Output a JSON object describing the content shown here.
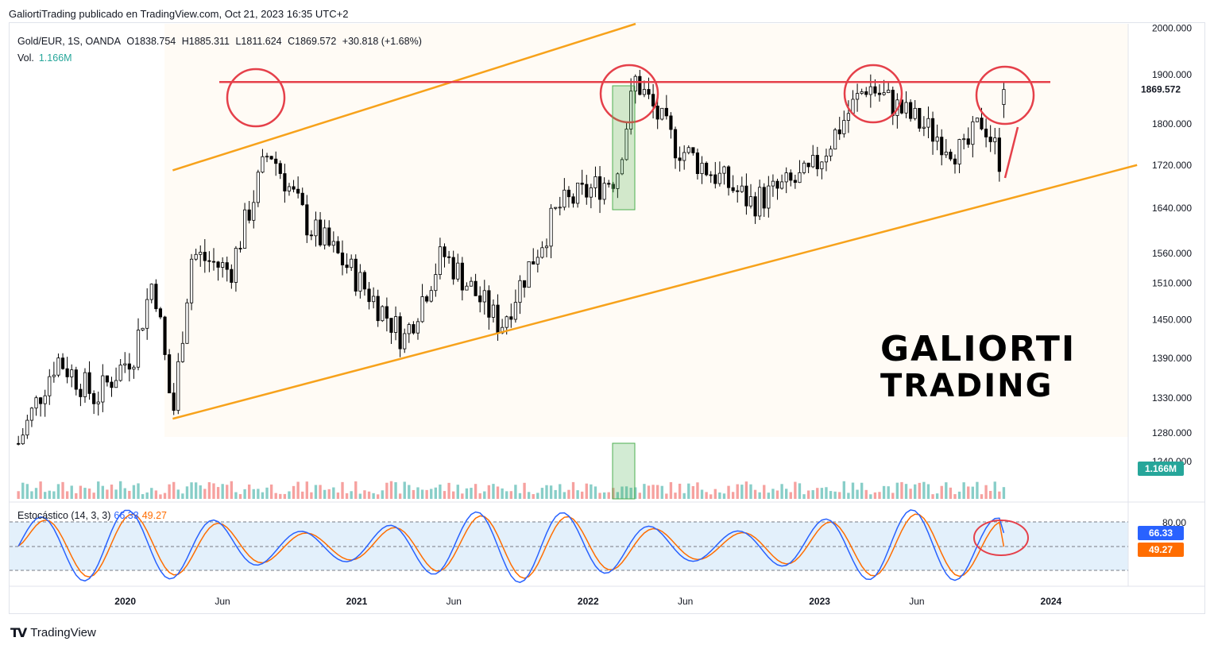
{
  "header": {
    "publisher_line": "GaliortiTrading publicado en TradingView.com, Oct 21, 2023 16:35 UTC+2"
  },
  "legend": {
    "symbol": "Gold/EUR, 1S, OANDA",
    "open": "O1838.754",
    "high": "H1885.311",
    "low": "L1811.624",
    "close": "C1869.572",
    "change": "+30.818 (+1.68%)",
    "vol_label": "Vol.",
    "vol_value": "1.166M"
  },
  "stoch_legend": {
    "label": "Estocástico (14, 3, 3)",
    "k_value": "66.33",
    "d_value": "49.27"
  },
  "price_axis": {
    "ticks": [
      "2000.000",
      "1900.000",
      "1800.000",
      "1720.000",
      "1640.000",
      "1560.000",
      "1510.000",
      "1450.000",
      "1390.000",
      "1330.000",
      "1280.000",
      "1240.000"
    ],
    "last_price": "1869.572",
    "volume_tag": "1.166M"
  },
  "stoch_axis": {
    "ticks": [
      "80.00"
    ],
    "k_tag": "66.33",
    "d_tag": "49.27"
  },
  "time_axis": {
    "labels": [
      "2020",
      "Jun",
      "2021",
      "Jun",
      "2022",
      "Jun",
      "2023",
      "Jun",
      "2024"
    ]
  },
  "watermark": {
    "line1": "GALIORTI",
    "line2": "TRADING"
  },
  "footer": {
    "brand": "TradingView"
  },
  "colors": {
    "bull_volume": "#26a69a",
    "bear_volume": "#ef5350",
    "channel": "#f7a21b",
    "resistance": "#e5404a",
    "stoch_k": "#2962ff",
    "stoch_d": "#ff6d00"
  },
  "chart_data": {
    "type": "candlestick",
    "symbol": "Gold/EUR",
    "interval": "1S",
    "y_scale": "log",
    "ylim": [
      1190,
      2010
    ],
    "x_range": [
      "2019-07",
      "2024-05"
    ],
    "price_key_points": [
      {
        "date": "2019-07",
        "price": 1265
      },
      {
        "date": "2019-09",
        "price": 1390
      },
      {
        "date": "2019-11",
        "price": 1330
      },
      {
        "date": "2020-01",
        "price": 1400
      },
      {
        "date": "2020-02",
        "price": 1520
      },
      {
        "date": "2020-03",
        "price": 1300
      },
      {
        "date": "2020-04",
        "price": 1560
      },
      {
        "date": "2020-06",
        "price": 1530
      },
      {
        "date": "2020-08",
        "price": 1750
      },
      {
        "date": "2020-10",
        "price": 1610
      },
      {
        "date": "2020-12",
        "price": 1540
      },
      {
        "date": "2021-03",
        "price": 1420
      },
      {
        "date": "2021-05",
        "price": 1560
      },
      {
        "date": "2021-08",
        "price": 1440
      },
      {
        "date": "2021-11",
        "price": 1640
      },
      {
        "date": "2022-02",
        "price": 1700
      },
      {
        "date": "2022-03",
        "price": 1890
      },
      {
        "date": "2022-05",
        "price": 1760
      },
      {
        "date": "2022-09",
        "price": 1650
      },
      {
        "date": "2022-12",
        "price": 1700
      },
      {
        "date": "2023-03",
        "price": 1880
      },
      {
        "date": "2023-05",
        "price": 1820
      },
      {
        "date": "2023-08",
        "price": 1740
      },
      {
        "date": "2023-09",
        "price": 1810
      },
      {
        "date": "2023-10",
        "price": 1720
      },
      {
        "date": "2023-10-21",
        "price": 1869.572
      }
    ],
    "annotations": {
      "resistance_level": 1885,
      "channel_upper": [
        {
          "date": "2020-03",
          "price": 1710
        },
        {
          "date": "2022-03",
          "price": 2010
        }
      ],
      "channel_lower": [
        {
          "date": "2020-03",
          "price": 1300
        },
        {
          "date": "2024-05",
          "price": 1720
        }
      ]
    },
    "stochastic": {
      "k": 66.33,
      "d": 49.27,
      "upper_band": 80,
      "lower_band": 20
    }
  }
}
